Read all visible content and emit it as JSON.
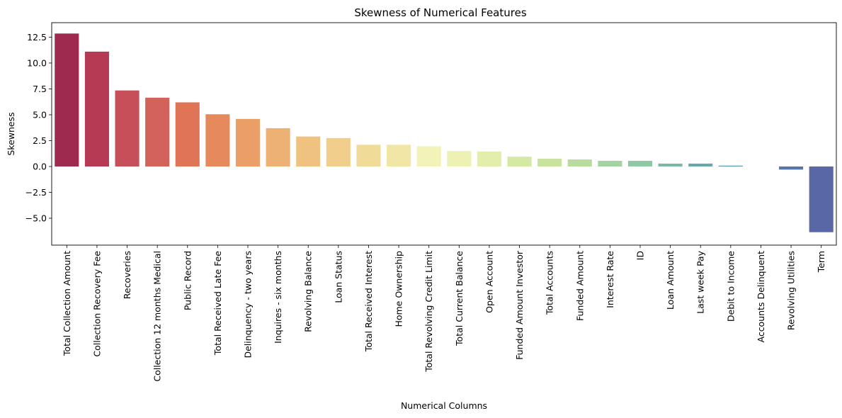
{
  "chart_data": {
    "type": "bar",
    "title": "Skewness of Numerical Features",
    "xlabel": "Numerical Columns",
    "ylabel": "Skewness",
    "ylim": [
      -7.6,
      13.9
    ],
    "yticks": [
      -5.0,
      -2.5,
      0.0,
      2.5,
      5.0,
      7.5,
      10.0,
      12.5
    ],
    "ytick_labels": [
      "−5.0",
      "−2.5",
      "0.0",
      "2.5",
      "5.0",
      "7.5",
      "10.0",
      "12.5"
    ],
    "grid": false,
    "categories": [
      "Total Collection Amount",
      "Collection Recovery Fee",
      "Recoveries",
      "Collection 12 months Medical",
      "Public Record",
      "Total Received Late Fee",
      "Delinquency - two years",
      "Inquires - six months",
      "Revolving Balance",
      "Loan Status",
      "Total Received Interest",
      "Home Ownership",
      "Total Revolving Credit Limit",
      "Total Current Balance",
      "Open Account",
      "Funded Amount Investor",
      "Total Accounts",
      "Funded Amount",
      "Interest Rate",
      "ID",
      "Loan Amount",
      "Last week Pay",
      "Debit to Income",
      "Accounts Delinquent",
      "Revolving Utilities",
      "Term"
    ],
    "values": [
      12.85,
      11.1,
      7.35,
      6.65,
      6.2,
      5.05,
      4.6,
      3.7,
      2.9,
      2.75,
      2.1,
      2.1,
      1.95,
      1.5,
      1.45,
      0.95,
      0.75,
      0.68,
      0.55,
      0.55,
      0.28,
      0.28,
      0.08,
      0.0,
      -0.3,
      -6.35
    ],
    "colors": [
      "#9e2a4f",
      "#b73a54",
      "#c64f5a",
      "#d3625a",
      "#df7556",
      "#e68a5e",
      "#eb9e66",
      "#eeb174",
      "#efc27f",
      "#f1ce8b",
      "#f1db99",
      "#f2e6a6",
      "#f3f2b8",
      "#edf1b3",
      "#e3eeac",
      "#d6e9a4",
      "#c7e39e",
      "#b7dc9e",
      "#a3d3a2",
      "#8ec8a4",
      "#7ab9a5",
      "#67a9a8",
      "#5997a8",
      "#5486a9",
      "#5677a8",
      "#5a67a7"
    ]
  }
}
